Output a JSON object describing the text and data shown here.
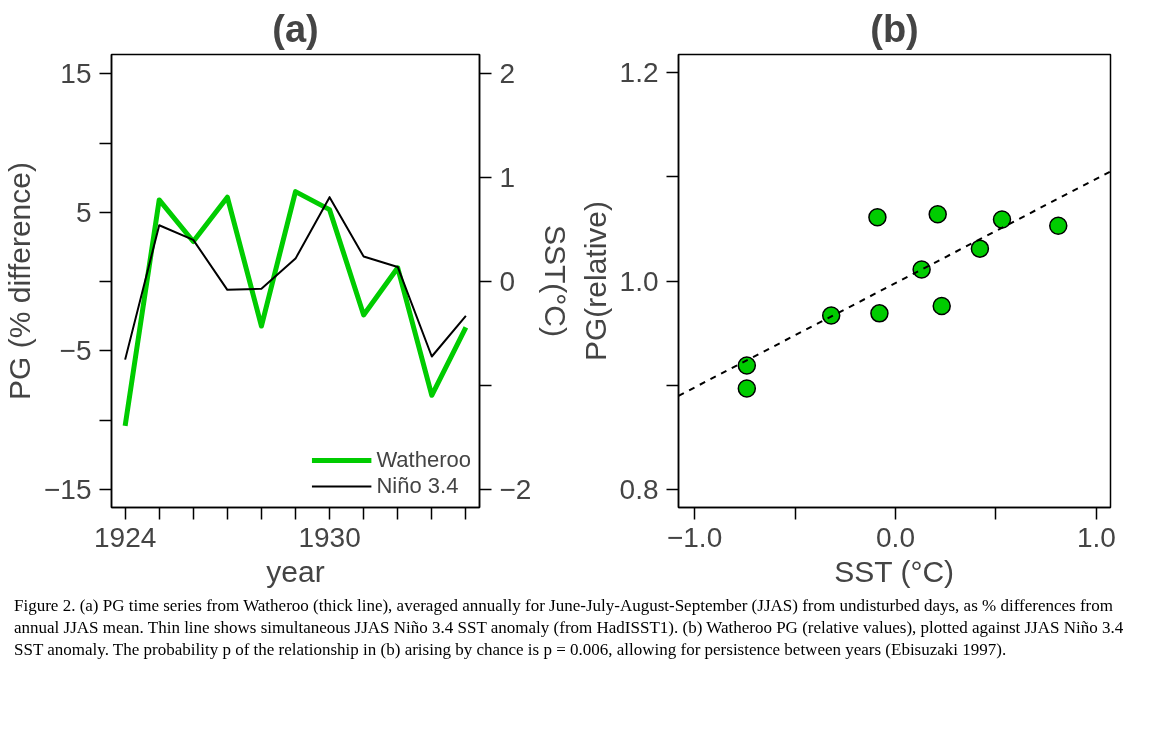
{
  "chart_data": [
    {
      "type": "line",
      "title": "(a)",
      "xlabel": "year",
      "ylabel": "PG (% difference)",
      "y2label": "SST(°C)",
      "x": [
        1924,
        1925,
        1926,
        1927,
        1928,
        1929,
        1930,
        1931,
        1932,
        1933,
        1934
      ],
      "series": [
        {
          "name": "Watheroo",
          "color": "#00cc00",
          "values": [
            -10.4,
            5.9,
            2.9,
            6.1,
            -3.2,
            6.5,
            5.2,
            -2.4,
            1.0,
            -8.2,
            -3.3
          ]
        },
        {
          "name": "Niño 3.4",
          "color": "#000000",
          "axis": "y2",
          "values": [
            -0.75,
            0.54,
            0.4,
            -0.08,
            -0.07,
            0.22,
            0.81,
            0.24,
            0.14,
            -0.72,
            -0.33
          ]
        }
      ],
      "xlim": [
        1923.6,
        1934.4
      ],
      "xticks": [
        1924,
        {
          "value": 1925,
          "label": null
        },
        {
          "value": 1926,
          "label": null
        },
        {
          "value": 1927,
          "label": null
        },
        {
          "value": 1928,
          "label": null
        },
        {
          "value": 1929,
          "label": null
        },
        1930,
        {
          "value": 1931,
          "label": null
        },
        {
          "value": 1932,
          "label": null
        },
        {
          "value": 1933,
          "label": null
        },
        {
          "value": 1934,
          "label": null
        }
      ],
      "ylim": [
        -16.3,
        16.4
      ],
      "yticks": [
        {
          "value": -15,
          "label": "−15"
        },
        {
          "value": -10,
          "label": null
        },
        {
          "value": -5,
          "label": "−5"
        },
        {
          "value": 0,
          "label": null
        },
        5,
        {
          "value": 10,
          "label": null
        },
        15
      ],
      "y2lim": [
        -2.17,
        2.18
      ],
      "y2ticks": [
        {
          "value": -2,
          "label": "−2"
        },
        {
          "value": -1,
          "label": null
        },
        0,
        1,
        2
      ],
      "grid": false,
      "legend": "bottom right",
      "marker": "none",
      "annotations": [
        "Figure 2. (a) PG time series from Watheroo (thick line), averaged annually for June-July-August-September (JJAS) from undisturbed days, as % differences from annual JJAS mean. Thin line shows simultaneous JJAS Niño 3.4 SST anomaly (from HadISST1). (b) Watheroo PG (relative values), plotted against JJAS Niño 3.4 SST anomaly. The probability p of the relationship in (b) arising by chance is p = 0.006, allowing for persistence between years (Ebisuzaki 1997)."
      ]
    },
    {
      "type": "scatter",
      "title": "(b)",
      "xlabel": "SST (°C)",
      "ylabel": "PG(relative)",
      "x": [
        -0.74,
        -0.74,
        -0.32,
        -0.08,
        -0.09,
        0.13,
        0.21,
        0.23,
        0.42,
        0.53,
        0.81
      ],
      "series": [
        {
          "color": "#00cc00",
          "values": [
            0.919,
            0.897,
            0.967,
            0.969,
            1.061,
            1.011,
            1.064,
            0.976,
            1.031,
            1.059,
            1.053
          ]
        },
        {
          "type": "line",
          "color": "#000000",
          "line_style": "dashed",
          "marker": "none",
          "x": [
            -1.08,
            1.07
          ],
          "values": [
            0.89,
            1.105
          ]
        }
      ],
      "xlim": [
        -1.08,
        1.07
      ],
      "xticks": [
        {
          "value": -1,
          "label": "−1.0"
        },
        {
          "value": -0.5,
          "label": null
        },
        {
          "value": 0,
          "label": "0.0"
        },
        {
          "value": 0.5,
          "label": null
        },
        {
          "value": 1,
          "label": "1.0"
        }
      ],
      "ylim": [
        0.783,
        1.217
      ],
      "yticks": [
        {
          "value": 0.8,
          "label": "0.8"
        },
        {
          "value": 0.9,
          "label": null
        },
        {
          "value": 1.0,
          "label": "1.0"
        },
        {
          "value": 1.1,
          "label": null
        },
        {
          "value": 1.2,
          "label": "1.2"
        }
      ],
      "grid": false,
      "marker": "circle"
    }
  ]
}
